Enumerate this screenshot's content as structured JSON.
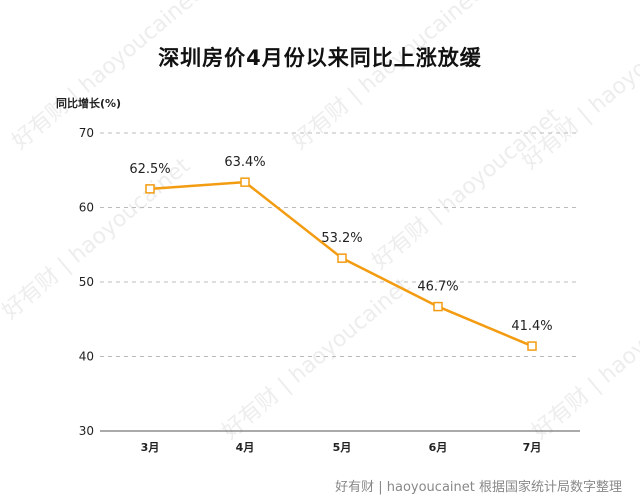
{
  "chart_data": {
    "type": "line",
    "title": "深圳房价4月份以来同比上涨放缓",
    "ylabel": "同比增长(%)",
    "xlabel": "",
    "categories": [
      "3月",
      "4月",
      "5月",
      "6月",
      "7月"
    ],
    "series": [
      {
        "values": [
          62.5,
          63.4,
          53.2,
          46.7,
          41.4
        ],
        "data_labels": [
          "62.5%",
          "63.4%",
          "53.2%",
          "46.7%",
          "41.4%"
        ]
      }
    ],
    "ylim": [
      30,
      70
    ],
    "yticks": [
      "70",
      "60",
      "50",
      "40",
      "30"
    ],
    "grid": "horizontal-dashed",
    "color": "#f39c12"
  },
  "footer": {
    "source": "好有财 | haoyoucainet  根据国家统计局数字整理"
  },
  "watermark": {
    "text": "好有财 | haoyoucainet"
  }
}
